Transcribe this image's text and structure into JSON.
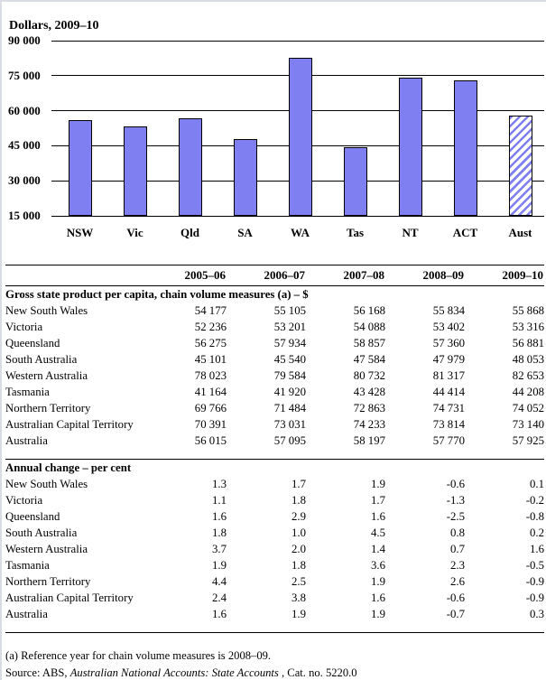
{
  "chart_data": {
    "type": "bar",
    "title": "Dollars, 2009–10",
    "categories": [
      "NSW",
      "Vic",
      "Qld",
      "SA",
      "WA",
      "Tas",
      "NT",
      "ACT",
      "Aust"
    ],
    "values": [
      55868,
      53316,
      56881,
      48053,
      82653,
      44208,
      74052,
      73140,
      57925
    ],
    "hatched_categories": [
      "Aust"
    ],
    "ylim": [
      15000,
      90000
    ],
    "ytick_labels": [
      "90 000",
      "75 000",
      "60 000",
      "45 000",
      "30 000",
      "15 000"
    ],
    "grid": true,
    "legend": "none",
    "bar_color": "#7f7ff2",
    "bar_border_color": "#000000"
  },
  "table": {
    "col_headers": [
      "2005–06",
      "2006–07",
      "2007–08",
      "2008–09",
      "2009–10"
    ],
    "sections": [
      {
        "title": "Gross state product per capita, chain volume measures (a) – $",
        "rows": [
          {
            "label": "New South Wales",
            "values": [
              "54 177",
              "55 105",
              "56 168",
              "55 834",
              "55 868"
            ]
          },
          {
            "label": "Victoria",
            "values": [
              "52 236",
              "53 201",
              "54 088",
              "53 402",
              "53 316"
            ]
          },
          {
            "label": "Queensland",
            "values": [
              "56 275",
              "57 934",
              "58 857",
              "57 360",
              "56 881"
            ]
          },
          {
            "label": "South Australia",
            "values": [
              "45 101",
              "45 540",
              "47 584",
              "47 979",
              "48 053"
            ]
          },
          {
            "label": "Western Australia",
            "values": [
              "78 023",
              "79 584",
              "80 732",
              "81 317",
              "82 653"
            ]
          },
          {
            "label": "Tasmania",
            "values": [
              "41 164",
              "41 920",
              "43 428",
              "44 414",
              "44 208"
            ]
          },
          {
            "label": "Northern Territory",
            "values": [
              "69 766",
              "71 484",
              "72 863",
              "74 731",
              "74 052"
            ]
          },
          {
            "label": "Australian Capital Territory",
            "values": [
              "70 391",
              "73 031",
              "74 233",
              "73 814",
              "73 140"
            ]
          },
          {
            "label": "Australia",
            "values": [
              "56 015",
              "57 095",
              "58 197",
              "57 770",
              "57 925"
            ]
          }
        ]
      },
      {
        "title": "Annual change – per cent",
        "rows": [
          {
            "label": "New South Wales",
            "values": [
              "1.3",
              "1.7",
              "1.9",
              "-0.6",
              "0.1"
            ]
          },
          {
            "label": "Victoria",
            "values": [
              "1.1",
              "1.8",
              "1.7",
              "-1.3",
              "-0.2"
            ]
          },
          {
            "label": "Queensland",
            "values": [
              "1.6",
              "2.9",
              "1.6",
              "-2.5",
              "-0.8"
            ]
          },
          {
            "label": "South Australia",
            "values": [
              "1.8",
              "1.0",
              "4.5",
              "0.8",
              "0.2"
            ]
          },
          {
            "label": "Western Australia",
            "values": [
              "3.7",
              "2.0",
              "1.4",
              "0.7",
              "1.6"
            ]
          },
          {
            "label": "Tasmania",
            "values": [
              "1.9",
              "1.8",
              "3.6",
              "2.3",
              "-0.5"
            ]
          },
          {
            "label": "Northern Territory",
            "values": [
              "4.4",
              "2.5",
              "1.9",
              "2.6",
              "-0.9"
            ]
          },
          {
            "label": "Australian Capital Territory",
            "values": [
              "2.4",
              "3.8",
              "1.6",
              "-0.6",
              "-0.9"
            ]
          },
          {
            "label": "Australia",
            "values": [
              "1.6",
              "1.9",
              "1.9",
              "-0.7",
              "0.3"
            ]
          }
        ]
      }
    ]
  },
  "footnotes": {
    "note_a": "(a) Reference year for chain volume measures is 2008–09.",
    "source_prefix": "Source: ABS, ",
    "source_italic": "Australian National Accounts: State Accounts",
    "source_suffix": " , Cat. no. 5220.0"
  },
  "colors": {
    "bar_fill": "#7f7ff2",
    "page_border": "#d9dde3",
    "rule": "#000000"
  }
}
